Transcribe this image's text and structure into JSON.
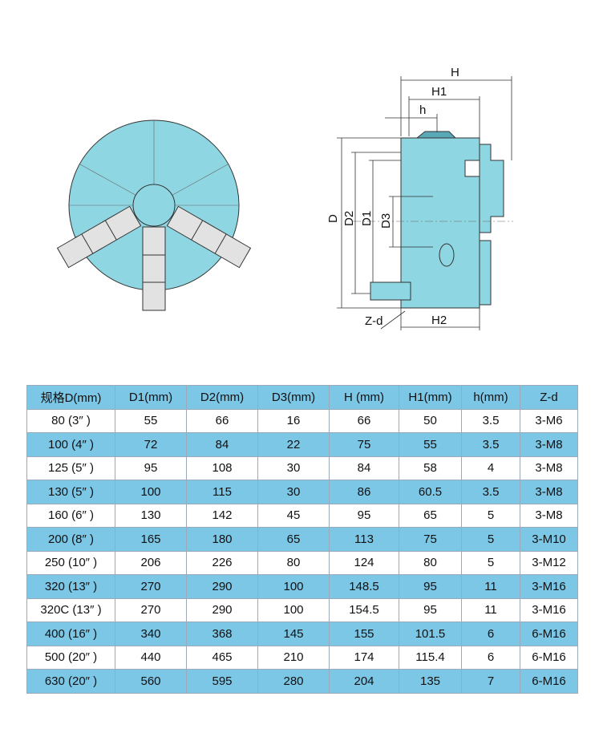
{
  "colors": {
    "body": "#8fd6e3",
    "jaw": "#e2e2e2",
    "row_alt": "#7cc6e6",
    "outline": "#333333"
  },
  "diagram_labels": {
    "H": "H",
    "H1": "H1",
    "h": "h",
    "D": "D",
    "D2": "D2",
    "D1": "D1",
    "D3": "D3",
    "Zd": "Z-d",
    "H2": "H2"
  },
  "table": {
    "headers": [
      "规格D(mm)",
      "D1(mm)",
      "D2(mm)",
      "D3(mm)",
      "H (mm)",
      "H1(mm)",
      "h(mm)",
      "Z-d"
    ],
    "rows": [
      [
        "80 (3″ )",
        "55",
        "66",
        "16",
        "66",
        "50",
        "3.5",
        "3-M6"
      ],
      [
        "100 (4″ )",
        "72",
        "84",
        "22",
        "75",
        "55",
        "3.5",
        "3-M8"
      ],
      [
        "125 (5″ )",
        "95",
        "108",
        "30",
        "84",
        "58",
        "4",
        "3-M8"
      ],
      [
        "130 (5″ )",
        "100",
        "115",
        "30",
        "86",
        "60.5",
        "3.5",
        "3-M8"
      ],
      [
        "160 (6″ )",
        "130",
        "142",
        "45",
        "95",
        "65",
        "5",
        "3-M8"
      ],
      [
        "200 (8″ )",
        "165",
        "180",
        "65",
        "113",
        "75",
        "5",
        "3-M10"
      ],
      [
        "250 (10″ )",
        "206",
        "226",
        "80",
        "124",
        "80",
        "5",
        "3-M12"
      ],
      [
        "320 (13″ )",
        "270",
        "290",
        "100",
        "148.5",
        "95",
        "11",
        "3-M16"
      ],
      [
        "320C (13″ )",
        "270",
        "290",
        "100",
        "154.5",
        "95",
        "11",
        "3-M16"
      ],
      [
        "400 (16″ )",
        "340",
        "368",
        "145",
        "155",
        "101.5",
        "6",
        "6-M16"
      ],
      [
        "500 (20″ )",
        "440",
        "465",
        "210",
        "174",
        "115.4",
        "6",
        "6-M16"
      ],
      [
        "630 (20″ )",
        "560",
        "595",
        "280",
        "204",
        "135",
        "7",
        "6-M16"
      ]
    ]
  }
}
